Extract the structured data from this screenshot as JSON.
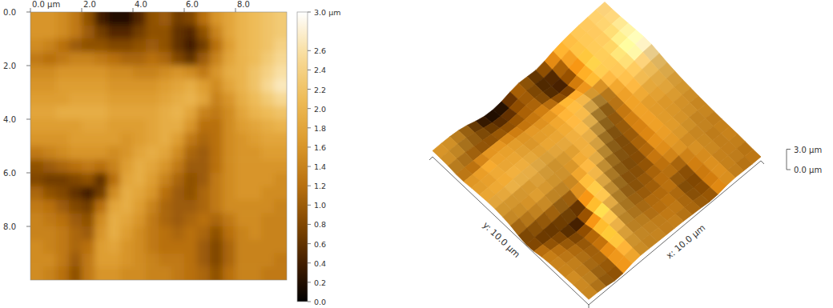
{
  "chart_data": {
    "type": "heatmap",
    "xlim": [
      0,
      10
    ],
    "ylim": [
      0,
      10
    ],
    "xticks": [
      {
        "value": 0,
        "label": "0.0 µm"
      },
      {
        "value": 2,
        "label": "2.0"
      },
      {
        "value": 4,
        "label": "4.0"
      },
      {
        "value": 6,
        "label": "6.0"
      },
      {
        "value": 8,
        "label": "8.0"
      }
    ],
    "yticks": [
      {
        "value": 0,
        "label": "0.0"
      },
      {
        "value": 2,
        "label": "2.0"
      },
      {
        "value": 4,
        "label": "4.0"
      },
      {
        "value": 6,
        "label": "6.0"
      },
      {
        "value": 8,
        "label": "8.0"
      }
    ],
    "x": [
      0.25,
      0.75,
      1.25,
      1.75,
      2.25,
      2.75,
      3.25,
      3.75,
      4.25,
      4.75,
      5.25,
      5.75,
      6.25,
      6.75,
      7.25,
      7.75,
      8.25,
      8.75,
      9.25,
      9.75
    ],
    "y": [
      0.25,
      0.75,
      1.25,
      1.75,
      2.25,
      2.75,
      3.25,
      3.75,
      4.25,
      4.75,
      5.25,
      5.75,
      6.25,
      6.75,
      7.25,
      7.75,
      8.25,
      8.75,
      9.25,
      9.75
    ],
    "values": [
      [
        1.6,
        1.6,
        1.5,
        1.3,
        0.9,
        0.4,
        0.2,
        0.2,
        0.5,
        0.9,
        1.0,
        0.7,
        0.8,
        1.2,
        1.6,
        1.8,
        2.0,
        2.1,
        2.2,
        2.3
      ],
      [
        1.6,
        1.6,
        1.5,
        1.3,
        1.0,
        0.7,
        0.5,
        0.5,
        0.7,
        0.9,
        0.9,
        0.6,
        0.5,
        0.9,
        1.4,
        1.8,
        2.0,
        2.1,
        2.2,
        2.3
      ],
      [
        1.5,
        1.4,
        1.2,
        1.0,
        0.9,
        0.9,
        0.8,
        0.8,
        0.9,
        1.0,
        0.9,
        0.6,
        0.4,
        0.7,
        1.2,
        1.7,
        2.0,
        2.1,
        2.2,
        2.4
      ],
      [
        1.3,
        1.2,
        1.3,
        1.4,
        1.4,
        1.3,
        1.2,
        1.1,
        1.1,
        1.2,
        1.1,
        0.8,
        0.6,
        1.0,
        1.4,
        1.8,
        2.0,
        2.1,
        2.3,
        2.5
      ],
      [
        1.5,
        1.5,
        1.6,
        1.6,
        1.6,
        1.6,
        1.5,
        1.5,
        1.4,
        1.4,
        1.5,
        1.6,
        1.5,
        1.3,
        1.6,
        1.9,
        2.0,
        2.2,
        2.4,
        2.6
      ],
      [
        1.6,
        1.6,
        1.7,
        1.7,
        1.7,
        1.7,
        1.6,
        1.6,
        1.6,
        1.6,
        1.7,
        1.8,
        1.9,
        1.7,
        1.5,
        1.8,
        2.0,
        2.2,
        2.5,
        2.7
      ],
      [
        1.7,
        1.7,
        1.7,
        1.8,
        1.8,
        1.8,
        1.7,
        1.7,
        1.7,
        1.7,
        1.8,
        1.9,
        2.0,
        1.8,
        1.4,
        1.6,
        1.9,
        2.1,
        2.3,
        2.5
      ],
      [
        1.8,
        1.8,
        1.9,
        1.9,
        1.9,
        1.9,
        1.8,
        1.8,
        1.8,
        1.8,
        1.9,
        2.0,
        1.8,
        1.4,
        1.3,
        1.5,
        1.8,
        2.0,
        2.1,
        2.2
      ],
      [
        1.7,
        1.7,
        1.7,
        1.7,
        1.8,
        1.8,
        1.7,
        1.7,
        1.7,
        1.8,
        1.9,
        1.9,
        1.6,
        1.2,
        1.2,
        1.5,
        1.7,
        1.8,
        1.9,
        2.0
      ],
      [
        1.6,
        1.6,
        1.6,
        1.7,
        1.7,
        1.7,
        1.7,
        1.6,
        1.7,
        1.8,
        1.9,
        1.7,
        1.3,
        1.1,
        1.2,
        1.5,
        1.6,
        1.7,
        1.8,
        1.8
      ],
      [
        1.3,
        1.4,
        1.5,
        1.6,
        1.6,
        1.6,
        1.5,
        1.6,
        1.8,
        1.9,
        1.8,
        1.5,
        1.1,
        1.0,
        1.2,
        1.5,
        1.6,
        1.6,
        1.7,
        1.7
      ],
      [
        0.9,
        1.0,
        1.1,
        1.2,
        1.3,
        1.2,
        1.4,
        1.7,
        1.9,
        1.8,
        1.6,
        1.3,
        1.0,
        1.0,
        1.2,
        1.5,
        1.6,
        1.6,
        1.6,
        1.6
      ],
      [
        0.8,
        0.7,
        0.7,
        0.8,
        0.9,
        0.6,
        1.2,
        1.8,
        1.9,
        1.7,
        1.4,
        1.1,
        0.9,
        1.0,
        1.3,
        1.5,
        1.6,
        1.6,
        1.6,
        1.5
      ],
      [
        1.1,
        0.9,
        0.8,
        0.6,
        0.4,
        0.7,
        1.5,
        1.9,
        1.8,
        1.6,
        1.2,
        1.0,
        0.9,
        1.1,
        1.3,
        1.5,
        1.6,
        1.6,
        1.5,
        1.5
      ],
      [
        1.3,
        1.2,
        1.0,
        0.8,
        0.7,
        1.2,
        1.8,
        1.9,
        1.7,
        1.4,
        1.1,
        1.0,
        1.0,
        1.1,
        1.3,
        1.5,
        1.5,
        1.5,
        1.5,
        1.4
      ],
      [
        1.4,
        1.3,
        1.2,
        1.0,
        0.9,
        1.5,
        1.9,
        1.8,
        1.6,
        1.3,
        1.1,
        1.0,
        1.1,
        1.2,
        1.1,
        1.3,
        1.5,
        1.5,
        1.4,
        1.4
      ],
      [
        1.4,
        1.4,
        1.3,
        1.1,
        1.0,
        1.6,
        1.9,
        1.7,
        1.5,
        1.3,
        1.2,
        1.1,
        1.2,
        1.1,
        0.9,
        1.2,
        1.4,
        1.5,
        1.4,
        1.4
      ],
      [
        1.5,
        1.4,
        1.3,
        1.1,
        1.2,
        1.7,
        1.8,
        1.6,
        1.5,
        1.3,
        1.2,
        1.2,
        1.2,
        1.0,
        0.8,
        1.1,
        1.4,
        1.4,
        1.4,
        1.4
      ],
      [
        1.5,
        1.5,
        1.3,
        1.0,
        1.3,
        1.7,
        1.7,
        1.6,
        1.5,
        1.4,
        1.3,
        1.3,
        1.2,
        1.0,
        0.8,
        1.1,
        1.4,
        1.4,
        1.4,
        1.3
      ],
      [
        1.5,
        1.4,
        1.2,
        0.9,
        1.3,
        1.6,
        1.6,
        1.5,
        1.5,
        1.4,
        1.4,
        1.3,
        1.2,
        1.1,
        0.9,
        1.2,
        1.4,
        1.4,
        1.3,
        1.3
      ]
    ],
    "colorbar": {
      "range": [
        0,
        3
      ],
      "ticks": [
        {
          "value": 3,
          "label": "3.0 µm"
        },
        2.6,
        2.4,
        2.2,
        {
          "value": 2,
          "label": "2.0"
        },
        1.8,
        1.6,
        1.4,
        1.2,
        {
          "value": 1,
          "label": "1.0"
        },
        0.8,
        0.6,
        0.4,
        0.2,
        {
          "value": 0,
          "label": "0.0"
        }
      ]
    },
    "surface_3d": {
      "x_label": "x: 10.0 µm",
      "y_label": "y: 10.0 µm",
      "zticks": [
        {
          "value": 3,
          "label": "3.0 µm"
        },
        {
          "value": 0,
          "label": "0.0 µm"
        }
      ]
    }
  }
}
